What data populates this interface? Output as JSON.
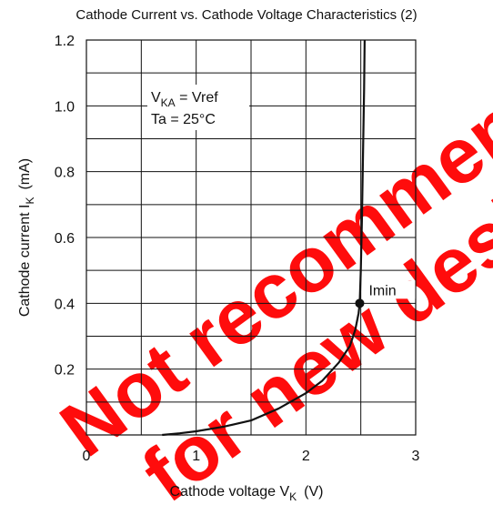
{
  "chart_data": {
    "type": "line",
    "title": "Cathode Current vs. Cathode Voltage Characteristics (2)",
    "x_label": {
      "text": "Cathode voltage  V",
      "sub": "K",
      "unit": "(V)"
    },
    "y_label": {
      "text": "Cathode current  I",
      "sub": "K",
      "unit": "(mA)"
    },
    "xlim": [
      0,
      3
    ],
    "ylim": [
      0,
      1.2
    ],
    "xticks": [
      0,
      1,
      2,
      3
    ],
    "yticks": [
      0.2,
      0.4,
      0.6,
      0.8,
      {
        "value": 1,
        "label": "1.0"
      },
      1.2
    ],
    "xgrid": [
      0.5,
      1.5,
      2.5
    ],
    "ygrid": [
      0.1,
      0.3,
      0.5,
      0.7,
      0.9,
      1.1
    ],
    "grid": true,
    "series": [
      {
        "color": "#111111",
        "x": [
          0.69,
          0.85,
          1.0,
          1.25,
          1.5,
          1.75,
          2.0,
          2.15,
          2.3,
          2.4,
          2.45,
          2.48,
          2.49,
          2.5,
          2.51,
          2.52,
          2.53,
          2.535
        ],
        "values": [
          0,
          0.005,
          0.011,
          0.025,
          0.044,
          0.08,
          0.127,
          0.165,
          0.22,
          0.27,
          0.32,
          0.37,
          0.4,
          0.5,
          0.65,
          0.85,
          1.05,
          1.2
        ]
      }
    ],
    "point": {
      "label": "Imin",
      "x": 2.49,
      "y": 0.4
    },
    "conditions": [
      {
        "text": "V",
        "sub": "KA",
        "rest": " = Vref"
      },
      {
        "text": "Ta = 25°C"
      }
    ],
    "watermark": [
      "Not recommended",
      "for new design"
    ],
    "watermark_color": "#ff0000"
  }
}
